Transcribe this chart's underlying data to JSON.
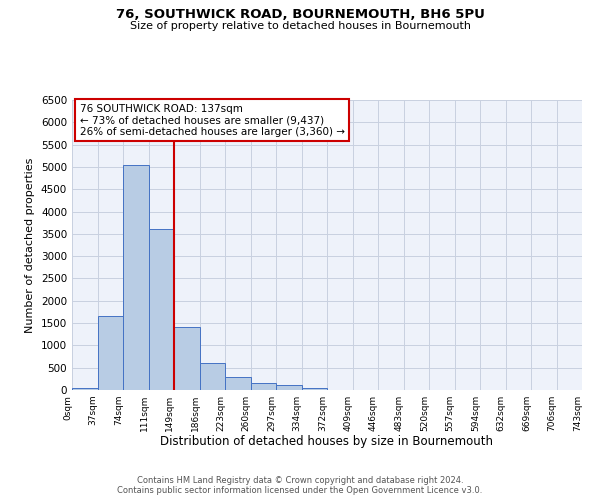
{
  "title": "76, SOUTHWICK ROAD, BOURNEMOUTH, BH6 5PU",
  "subtitle": "Size of property relative to detached houses in Bournemouth",
  "xlabel": "Distribution of detached houses by size in Bournemouth",
  "ylabel": "Number of detached properties",
  "footer_line1": "Contains HM Land Registry data © Crown copyright and database right 2024.",
  "footer_line2": "Contains public sector information licensed under the Open Government Licence v3.0.",
  "bin_labels": [
    "0sqm",
    "37sqm",
    "74sqm",
    "111sqm",
    "149sqm",
    "186sqm",
    "223sqm",
    "260sqm",
    "297sqm",
    "334sqm",
    "372sqm",
    "409sqm",
    "446sqm",
    "483sqm",
    "520sqm",
    "557sqm",
    "594sqm",
    "632sqm",
    "669sqm",
    "706sqm",
    "743sqm"
  ],
  "bar_values": [
    50,
    1650,
    5050,
    3600,
    1420,
    610,
    290,
    150,
    120,
    50,
    0,
    0,
    0,
    0,
    0,
    0,
    0,
    0,
    0,
    0
  ],
  "ylim": [
    0,
    6500
  ],
  "yticks": [
    0,
    500,
    1000,
    1500,
    2000,
    2500,
    3000,
    3500,
    4000,
    4500,
    5000,
    5500,
    6000,
    6500
  ],
  "bar_color": "#b8cce4",
  "bar_edge_color": "#4472c4",
  "vline_x": 4,
  "vline_color": "#cc0000",
  "annotation_title": "76 SOUTHWICK ROAD: 137sqm",
  "annotation_line2": "← 73% of detached houses are smaller (9,437)",
  "annotation_line3": "26% of semi-detached houses are larger (3,360) →",
  "annotation_box_color": "#cc0000",
  "plot_bg_color": "#eef2fa",
  "grid_color": "#c8d0e0"
}
